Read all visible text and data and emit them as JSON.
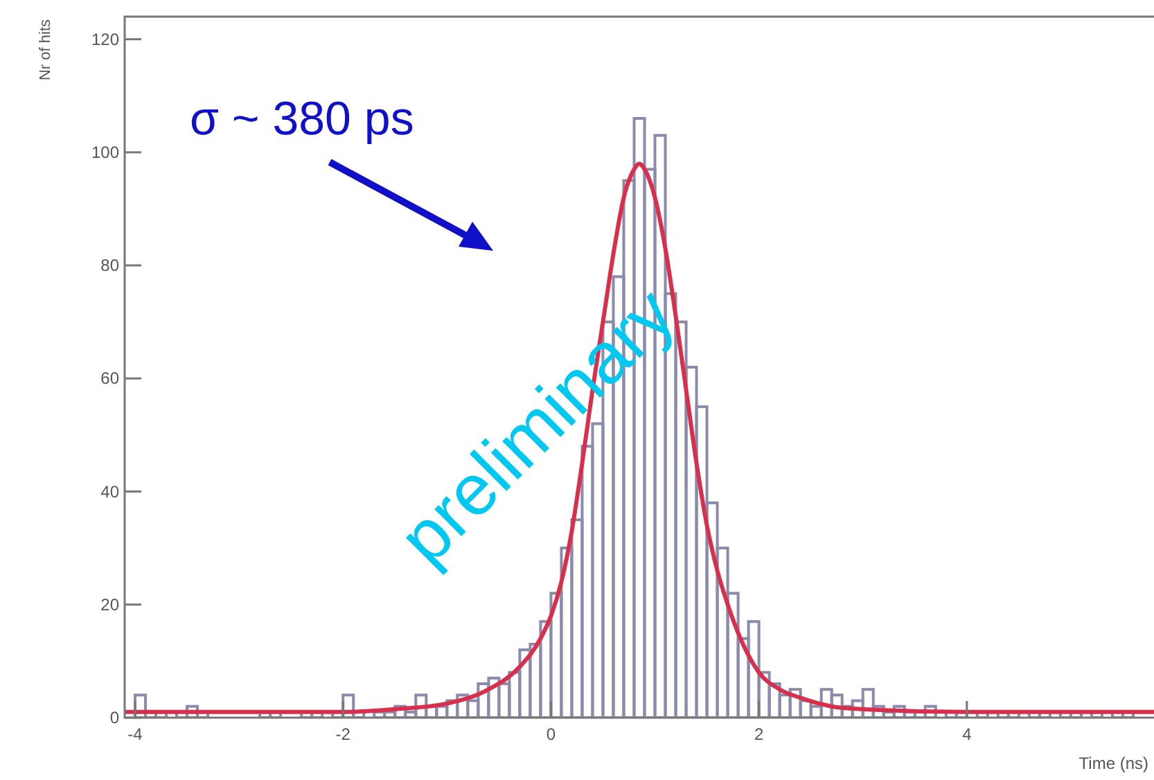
{
  "chart_data": {
    "type": "histogram",
    "xlabel": "Time (ns)",
    "ylabel": "Nr of hits",
    "annotations": [
      "σ ~ 380 ps",
      "preliminary"
    ],
    "xlim": [
      -4.1,
      5.8
    ],
    "xticks": [
      -4,
      -2,
      0,
      2,
      4
    ],
    "ylim": [
      0,
      124
    ],
    "yticks": [
      0,
      20,
      40,
      60,
      80,
      100,
      120
    ],
    "series": [
      {
        "color": "#8a8aaa",
        "bins": [
          -4.0,
          -3.9,
          -3.8,
          -3.7,
          -3.6,
          -3.5,
          -3.4,
          -3.3,
          -3.2,
          -3.1,
          -3.0,
          -2.9,
          -2.8,
          -2.7,
          -2.6,
          -2.5,
          -2.4,
          -2.3,
          -2.2,
          -2.1,
          -2.0,
          -1.9,
          -1.8,
          -1.7,
          -1.6,
          -1.5,
          -1.4,
          -1.3,
          -1.2,
          -1.1,
          -1.0,
          -0.9,
          -0.8,
          -0.7,
          -0.6,
          -0.5,
          -0.4,
          -0.3,
          -0.2,
          -0.1,
          0.0,
          0.1,
          0.2,
          0.3,
          0.4,
          0.5,
          0.6,
          0.7,
          0.8,
          0.9,
          1.0,
          1.1,
          1.2,
          1.3,
          1.4,
          1.5,
          1.6,
          1.7,
          1.8,
          1.9,
          2.0,
          2.1,
          2.2,
          2.3,
          2.4,
          2.5,
          2.6,
          2.7,
          2.8,
          2.9,
          3.0,
          3.1,
          3.2,
          3.3,
          3.4,
          3.5,
          3.6,
          3.7,
          3.8,
          3.9,
          4.0,
          4.1,
          4.2,
          4.3,
          4.4,
          4.5,
          4.6,
          4.7,
          4.8,
          4.9,
          5.0,
          5.1,
          5.2,
          5.3,
          5.4,
          5.5,
          5.6
        ],
        "values": [
          4,
          1,
          1,
          0,
          1,
          2,
          1,
          0,
          0,
          0,
          0,
          0,
          1,
          1,
          0,
          0,
          1,
          1,
          0,
          1,
          4,
          1,
          0,
          1,
          1,
          2,
          1,
          4,
          2,
          2,
          3,
          4,
          3,
          6,
          7,
          6,
          8,
          12,
          13,
          17,
          22,
          30,
          35,
          48,
          52,
          70,
          78,
          95,
          106,
          97,
          103,
          75,
          70,
          62,
          55,
          38,
          30,
          22,
          14,
          17,
          8,
          6,
          4,
          5,
          3,
          2,
          5,
          4,
          2,
          3,
          5,
          2,
          1,
          2,
          1,
          1,
          2,
          0,
          1,
          1,
          0,
          1,
          0,
          1,
          1,
          0,
          1,
          1,
          0,
          1,
          1,
          0,
          1,
          0,
          1,
          1
        ]
      },
      {
        "type": "line",
        "color": "#d8304c",
        "x": [
          -4.1,
          -2,
          -1.5,
          -1,
          -0.6,
          -0.3,
          -0.1,
          0,
          0.1,
          0.2,
          0.3,
          0.4,
          0.5,
          0.6,
          0.7,
          0.8,
          0.85,
          0.9,
          1.0,
          1.1,
          1.2,
          1.3,
          1.4,
          1.5,
          1.6,
          1.7,
          1.8,
          1.9,
          2.0,
          2.2,
          2.4,
          2.7,
          3,
          4,
          5.8
        ],
        "values": [
          1,
          1,
          1.5,
          2.5,
          5,
          9,
          14,
          18,
          24,
          33,
          45,
          58,
          70,
          82,
          92,
          97,
          98,
          97,
          92,
          83,
          71,
          58,
          45,
          34,
          26,
          20,
          15,
          11,
          8,
          5,
          3.5,
          2,
          1.5,
          1,
          1
        ]
      }
    ]
  }
}
